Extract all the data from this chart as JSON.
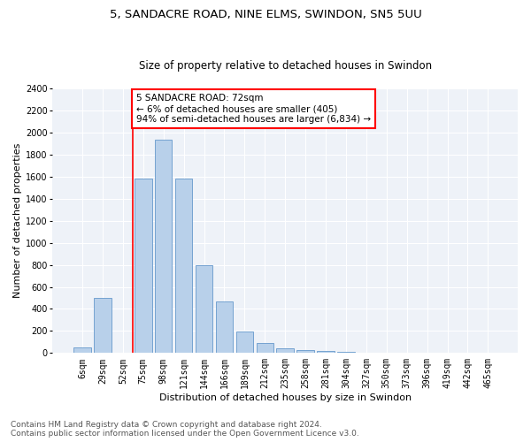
{
  "title_line1": "5, SANDACRE ROAD, NINE ELMS, SWINDON, SN5 5UU",
  "title_line2": "Size of property relative to detached houses in Swindon",
  "xlabel": "Distribution of detached houses by size in Swindon",
  "ylabel": "Number of detached properties",
  "categories": [
    "6sqm",
    "29sqm",
    "52sqm",
    "75sqm",
    "98sqm",
    "121sqm",
    "144sqm",
    "166sqm",
    "189sqm",
    "212sqm",
    "235sqm",
    "258sqm",
    "281sqm",
    "304sqm",
    "327sqm",
    "350sqm",
    "373sqm",
    "396sqm",
    "419sqm",
    "442sqm",
    "465sqm"
  ],
  "values": [
    50,
    500,
    0,
    1580,
    1940,
    1580,
    800,
    470,
    195,
    90,
    40,
    30,
    20,
    10,
    5,
    5,
    2,
    2,
    2,
    2,
    2
  ],
  "bar_color": "#b8d0ea",
  "bar_edge_color": "#6699cc",
  "vline_color": "red",
  "vline_x_idx": 2.5,
  "annotation_text": "5 SANDACRE ROAD: 72sqm\n← 6% of detached houses are smaller (405)\n94% of semi-detached houses are larger (6,834) →",
  "annotation_box_color": "white",
  "annotation_box_edge": "red",
  "ylim": [
    0,
    2400
  ],
  "yticks": [
    0,
    200,
    400,
    600,
    800,
    1000,
    1200,
    1400,
    1600,
    1800,
    2000,
    2200,
    2400
  ],
  "footer_line1": "Contains HM Land Registry data © Crown copyright and database right 2024.",
  "footer_line2": "Contains public sector information licensed under the Open Government Licence v3.0.",
  "bg_color": "#eef2f8",
  "title_fontsize": 9.5,
  "subtitle_fontsize": 8.5,
  "axis_label_fontsize": 8,
  "tick_fontsize": 7,
  "footer_fontsize": 6.5,
  "annotation_fontsize": 7.5
}
